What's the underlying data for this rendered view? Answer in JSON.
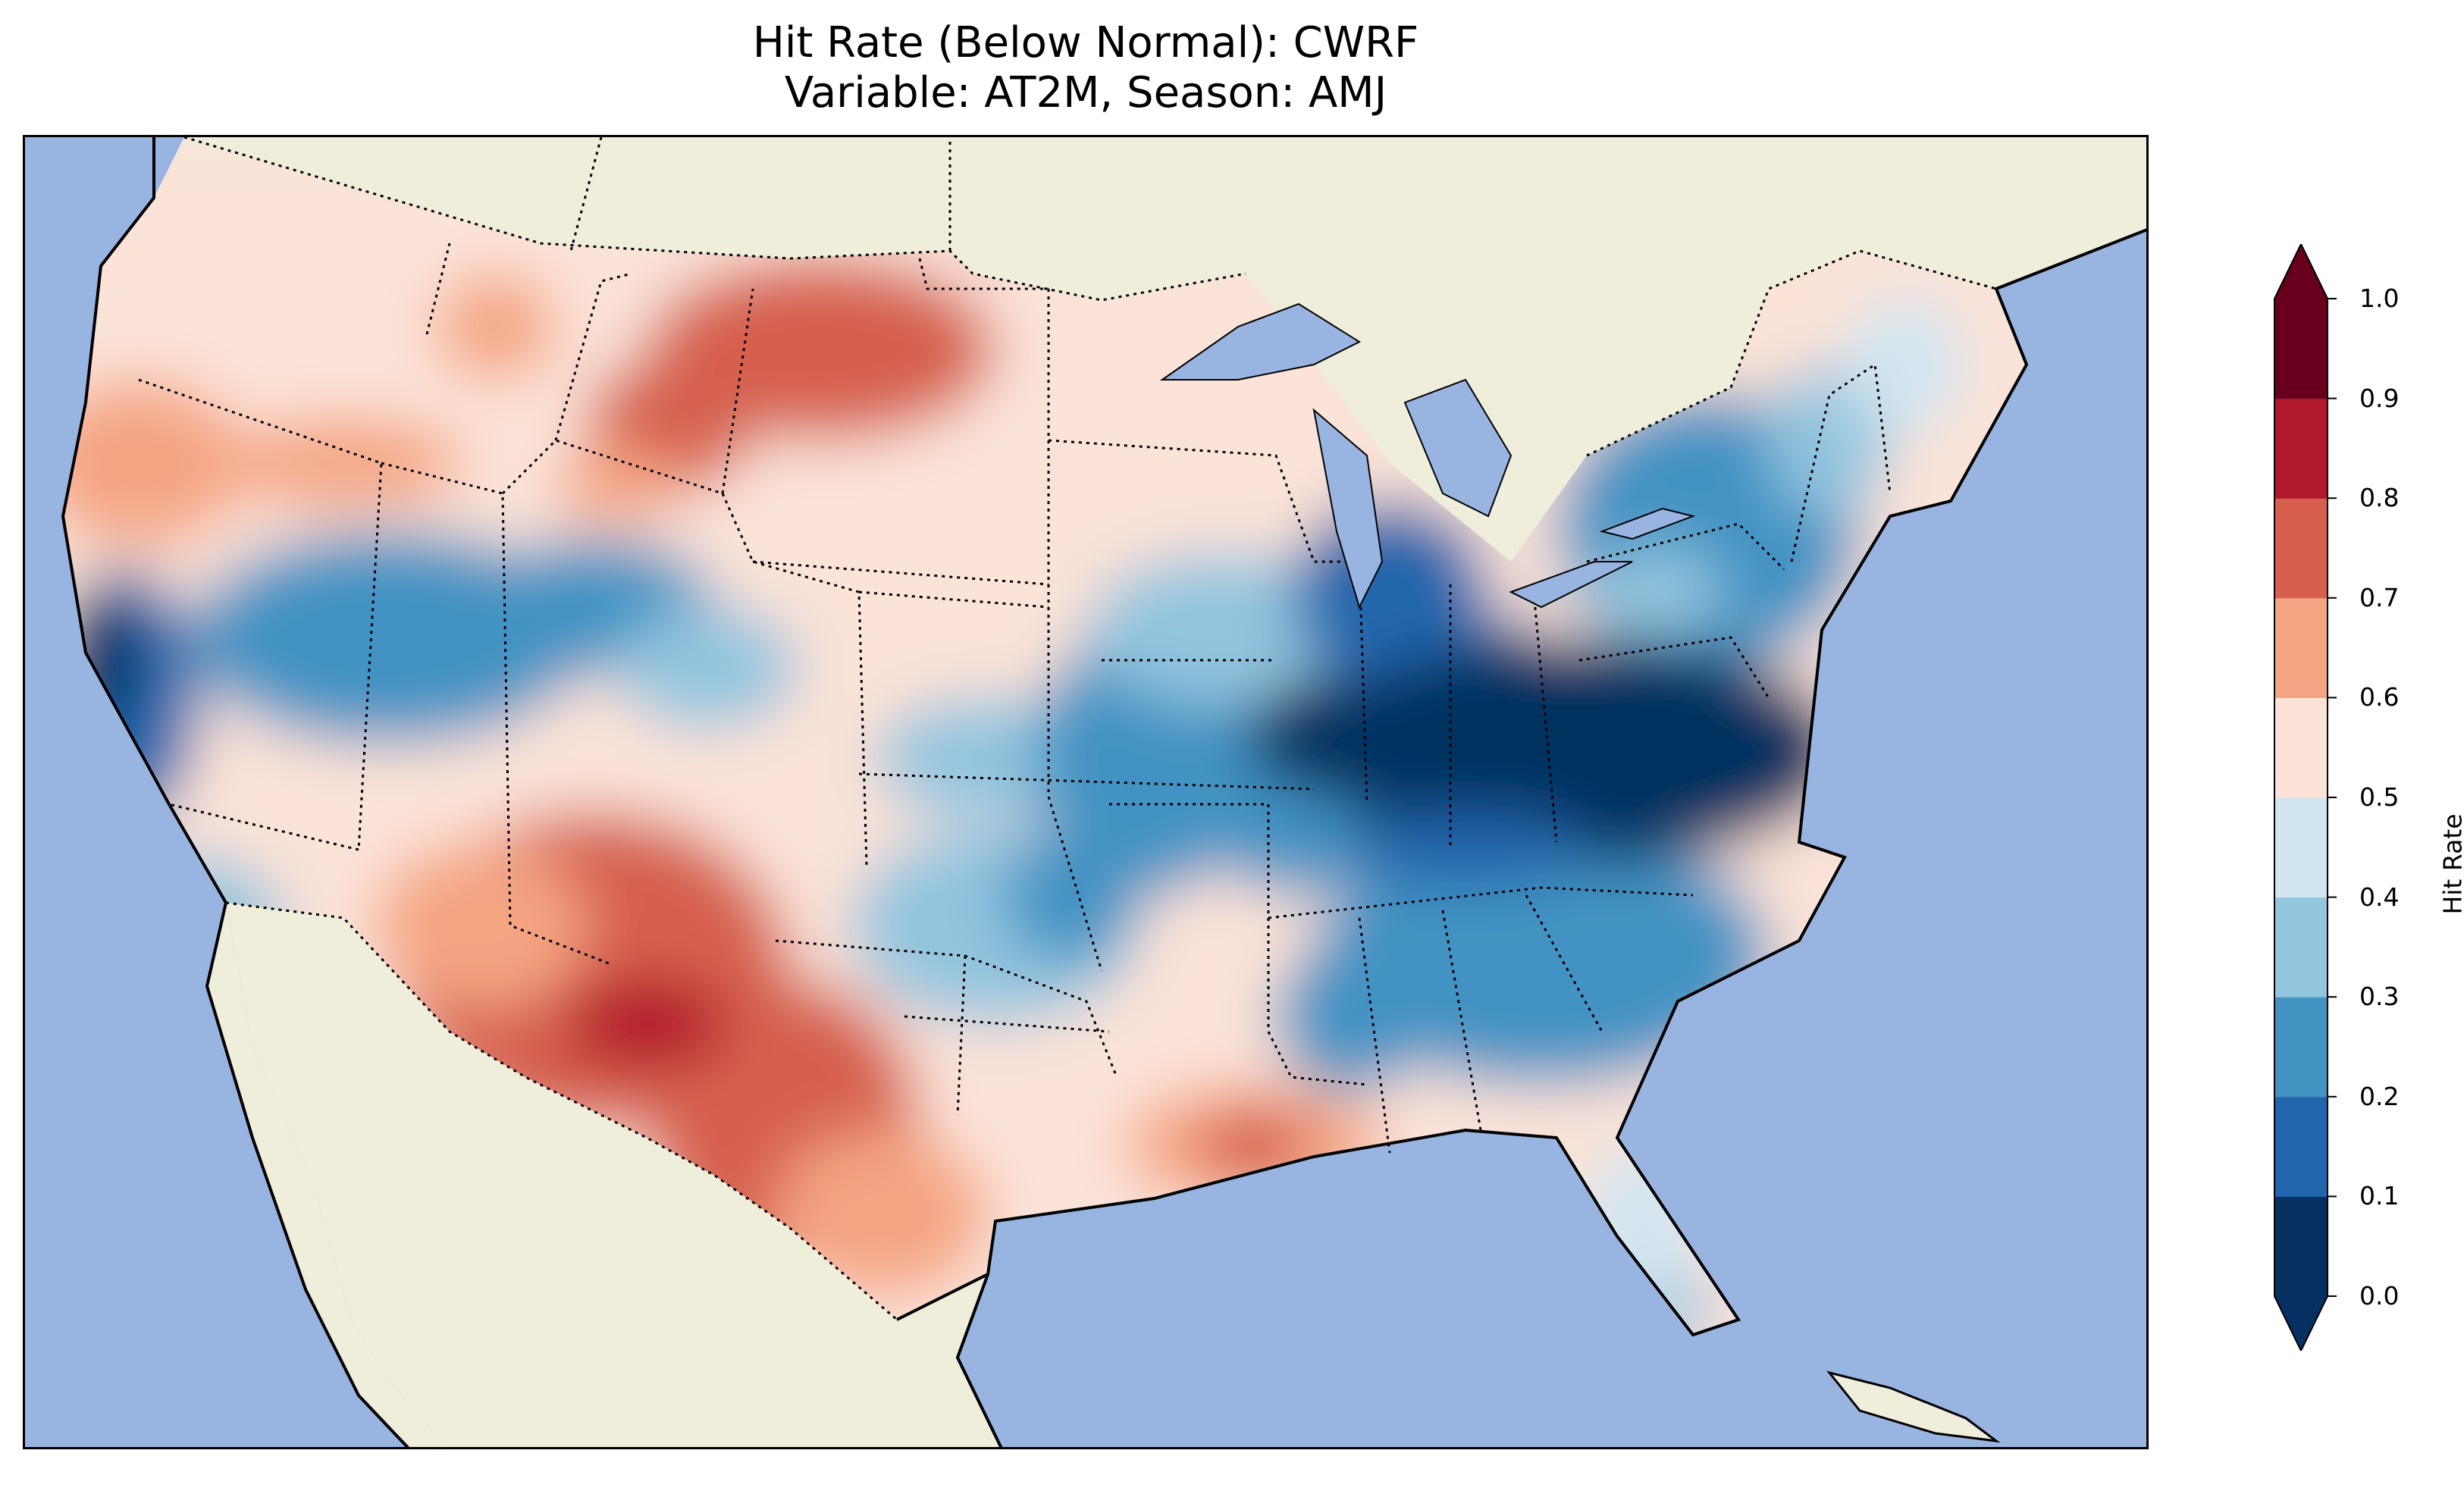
{
  "title": {
    "line1": "Hit Rate (Below Normal): CWRF",
    "line2": "Variable: AT2M, Season: AMJ"
  },
  "colors": {
    "ocean": "#98b4e0",
    "land": "#efeedb",
    "coast": "#000000"
  },
  "colorbar": {
    "label": "Hit Rate",
    "ticks": [
      "0.0",
      "0.1",
      "0.2",
      "0.3",
      "0.4",
      "0.5",
      "0.6",
      "0.7",
      "0.8",
      "0.9",
      "1.0"
    ],
    "bin_colors": [
      "#053061",
      "#2166ac",
      "#4393c3",
      "#92c5de",
      "#d1e5f0",
      "#fbe3d8",
      "#f4a582",
      "#d6604d",
      "#b2182b",
      "#67001f"
    ],
    "under_color": "#053061",
    "over_color": "#67001f",
    "extend": "both"
  },
  "map": {
    "region": "Contiguous United States",
    "field": "Hit Rate",
    "regions": [
      {
        "area": "Pacific Northwest coast",
        "value": 0.65
      },
      {
        "area": "Northern Rockies / Montana",
        "value": 0.75
      },
      {
        "area": "Central California",
        "value": 0.15
      },
      {
        "area": "Great Basin",
        "value": 0.3
      },
      {
        "area": "Arizona / New Mexico",
        "value": 0.75
      },
      {
        "area": "Southern New Mexico",
        "value": 0.85
      },
      {
        "area": "West Texas",
        "value": 0.7
      },
      {
        "area": "Ohio Valley / Mid-Atlantic",
        "value": 0.05
      },
      {
        "area": "Southeast",
        "value": 0.25
      },
      {
        "area": "Northeast",
        "value": 0.3
      },
      {
        "area": "Louisiana coast",
        "value": 0.65
      },
      {
        "area": "Florida",
        "value": 0.45
      }
    ]
  }
}
